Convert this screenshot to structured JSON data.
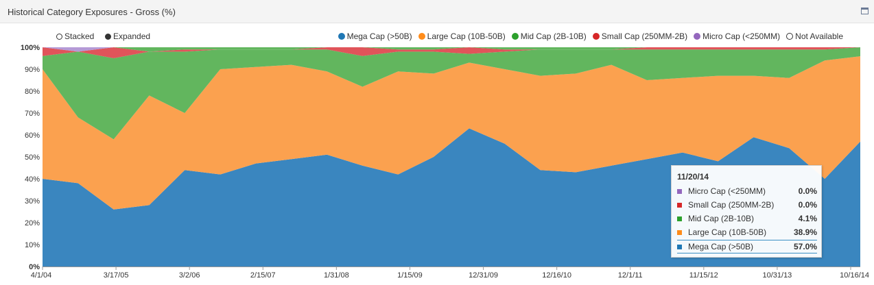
{
  "header": {
    "title": "Historical Category Exposures - Gross (%)"
  },
  "controls": {
    "stacked_label": "Stacked",
    "expanded_label": "Expanded"
  },
  "colors": {
    "mega": "#3a86bf",
    "large": "#fba14f",
    "mid": "#62b65e",
    "small": "#e0545a",
    "micro": "#b59ad6"
  },
  "legend": [
    {
      "label": "Mega Cap (>50B)",
      "color": "#1f77b4",
      "hollow": false
    },
    {
      "label": "Large Cap (10B-50B)",
      "color": "#ff8c1a",
      "hollow": false
    },
    {
      "label": "Mid Cap (2B-10B)",
      "color": "#2ca02c",
      "hollow": false
    },
    {
      "label": "Small Cap (250MM-2B)",
      "color": "#d62728",
      "hollow": false
    },
    {
      "label": "Micro Cap (<250MM)",
      "color": "#9467bd",
      "hollow": false
    },
    {
      "label": "Not Available",
      "color": "#333333",
      "hollow": true
    }
  ],
  "tooltip": {
    "date": "11/20/14",
    "rows": [
      {
        "label": "Micro Cap (<250MM)",
        "value": "0.0%",
        "color": "#9467bd"
      },
      {
        "label": "Small Cap (250MM-2B)",
        "value": "0.0%",
        "color": "#d62728"
      },
      {
        "label": "Mid Cap (2B-10B)",
        "value": "4.1%",
        "color": "#2ca02c"
      },
      {
        "label": "Large Cap (10B-50B)",
        "value": "38.9%",
        "color": "#ff8c1a"
      },
      {
        "label": "Mega Cap (>50B)",
        "value": "57.0%",
        "color": "#1f77b4"
      }
    ]
  },
  "chart_data": {
    "type": "area",
    "stacked": true,
    "title": "Historical Category Exposures - Gross (%)",
    "x_tick_labels": [
      "4/1/04",
      "3/17/05",
      "3/2/06",
      "2/15/07",
      "1/31/08",
      "1/15/09",
      "12/31/09",
      "12/16/10",
      "12/1/11",
      "11/15/12",
      "10/31/13",
      "10/16/14"
    ],
    "y_tick_labels": [
      "0%",
      "10%",
      "20%",
      "30%",
      "40%",
      "50%",
      "60%",
      "70%",
      "80%",
      "90%",
      "100%"
    ],
    "ylim": [
      0,
      100
    ],
    "x": [
      "4/1/04",
      "9/1/04",
      "3/17/05",
      "9/1/05",
      "3/2/06",
      "9/1/06",
      "2/15/07",
      "8/1/07",
      "1/31/08",
      "7/15/08",
      "1/15/09",
      "7/1/09",
      "12/31/09",
      "6/15/10",
      "12/16/10",
      "6/1/11",
      "12/1/11",
      "6/1/12",
      "11/15/12",
      "5/1/13",
      "10/31/13",
      "5/1/14",
      "10/16/14",
      "11/20/14"
    ],
    "series": [
      {
        "name": "Mega Cap (>50B)",
        "values": [
          40,
          38,
          26,
          28,
          44,
          42,
          47,
          49,
          51,
          46,
          42,
          50,
          63,
          56,
          44,
          43,
          46,
          49,
          52,
          48,
          59,
          54,
          40,
          57
        ]
      },
      {
        "name": "Large Cap (10B-50B)",
        "values": [
          50,
          30,
          32,
          50,
          26,
          48,
          44,
          43,
          38,
          36,
          47,
          38,
          30,
          34,
          43,
          45,
          46,
          36,
          34,
          39,
          28,
          32,
          54,
          38.9
        ]
      },
      {
        "name": "Mid Cap (2B-10B)",
        "values": [
          6,
          30,
          37,
          20,
          28,
          9,
          8,
          7,
          10,
          14,
          9,
          10,
          4,
          8,
          12,
          11,
          7,
          14,
          13,
          12,
          12,
          13,
          5,
          4.1
        ]
      },
      {
        "name": "Small Cap (250MM-2B)",
        "values": [
          4,
          0,
          5,
          0,
          1,
          0,
          0,
          0,
          1,
          4,
          1,
          1,
          3,
          1,
          0,
          0,
          0,
          1,
          1,
          1,
          1,
          1,
          1,
          0
        ]
      },
      {
        "name": "Micro Cap (<250MM)",
        "values": [
          0,
          2,
          0,
          0,
          0,
          0,
          0,
          0,
          0,
          0,
          0,
          0,
          0,
          0,
          0,
          0,
          0,
          0,
          0,
          0,
          0,
          0,
          0,
          0
        ]
      }
    ],
    "legend_position": "top-right",
    "grid": false
  }
}
